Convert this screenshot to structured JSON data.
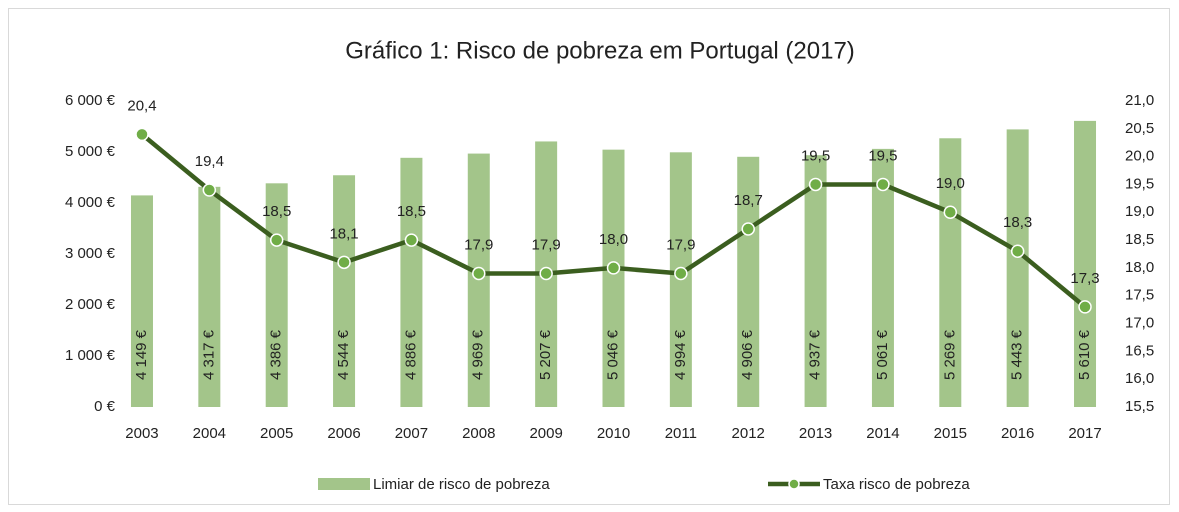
{
  "chart_data": {
    "type": "combo",
    "title": "Gráfico 1: Risco de pobreza em Portugal (2017)",
    "categories": [
      "2003",
      "2004",
      "2005",
      "2006",
      "2007",
      "2008",
      "2009",
      "2010",
      "2011",
      "2012",
      "2013",
      "2014",
      "2015",
      "2016",
      "2017"
    ],
    "series": [
      {
        "name": "Limiar de risco de pobreza",
        "type": "bar",
        "color": "#a3c58a",
        "values": [
          4149,
          4317,
          4386,
          4544,
          4886,
          4969,
          5207,
          5046,
          4994,
          4906,
          4937,
          5061,
          5269,
          5443,
          5610
        ],
        "value_labels": [
          "4 149 €",
          "4 317 €",
          "4 386 €",
          "4 544 €",
          "4 886 €",
          "4 969 €",
          "5 207 €",
          "5 046 €",
          "4 994 €",
          "4 906 €",
          "4 937 €",
          "5 061 €",
          "5 269 €",
          "5 443 €",
          "5 610 €"
        ]
      },
      {
        "name": "Taxa risco de pobreza",
        "type": "line",
        "axis": "y2",
        "color": "#3b5e1f",
        "marker_color": "#70ad47",
        "values": [
          20.4,
          19.4,
          18.5,
          18.1,
          18.5,
          17.9,
          17.9,
          18.0,
          17.9,
          18.7,
          19.5,
          19.5,
          19.0,
          18.3,
          17.3
        ],
        "value_labels": [
          "20,4",
          "19,4",
          "18,5",
          "18,1",
          "18,5",
          "17,9",
          "17,9",
          "18,0",
          "17,9",
          "18,7",
          "19,5",
          "19,5",
          "19,0",
          "18,3",
          "17,3"
        ]
      }
    ],
    "ylim": [
      0,
      6000
    ],
    "yticks": [
      {
        "value": 0,
        "label": "0 €"
      },
      {
        "value": 1000,
        "label": "1 000 €"
      },
      {
        "value": 2000,
        "label": "2 000 €"
      },
      {
        "value": 3000,
        "label": "3 000 €"
      },
      {
        "value": 4000,
        "label": "4 000 €"
      },
      {
        "value": 5000,
        "label": "5 000 €"
      },
      {
        "value": 6000,
        "label": "6 000 €"
      }
    ],
    "y2lim": [
      15.5,
      21.0
    ],
    "y2ticks": [
      {
        "value": 15.5,
        "label": "15,5"
      },
      {
        "value": 16.0,
        "label": "16,0"
      },
      {
        "value": 16.5,
        "label": "16,5"
      },
      {
        "value": 17.0,
        "label": "17,0"
      },
      {
        "value": 17.5,
        "label": "17,5"
      },
      {
        "value": 18.0,
        "label": "18,0"
      },
      {
        "value": 18.5,
        "label": "18,5"
      },
      {
        "value": 19.0,
        "label": "19,0"
      },
      {
        "value": 19.5,
        "label": "19,5"
      },
      {
        "value": 20.0,
        "label": "20,0"
      },
      {
        "value": 20.5,
        "label": "20,5"
      },
      {
        "value": 21.0,
        "label": "21,0"
      }
    ],
    "legend": "bottom"
  }
}
